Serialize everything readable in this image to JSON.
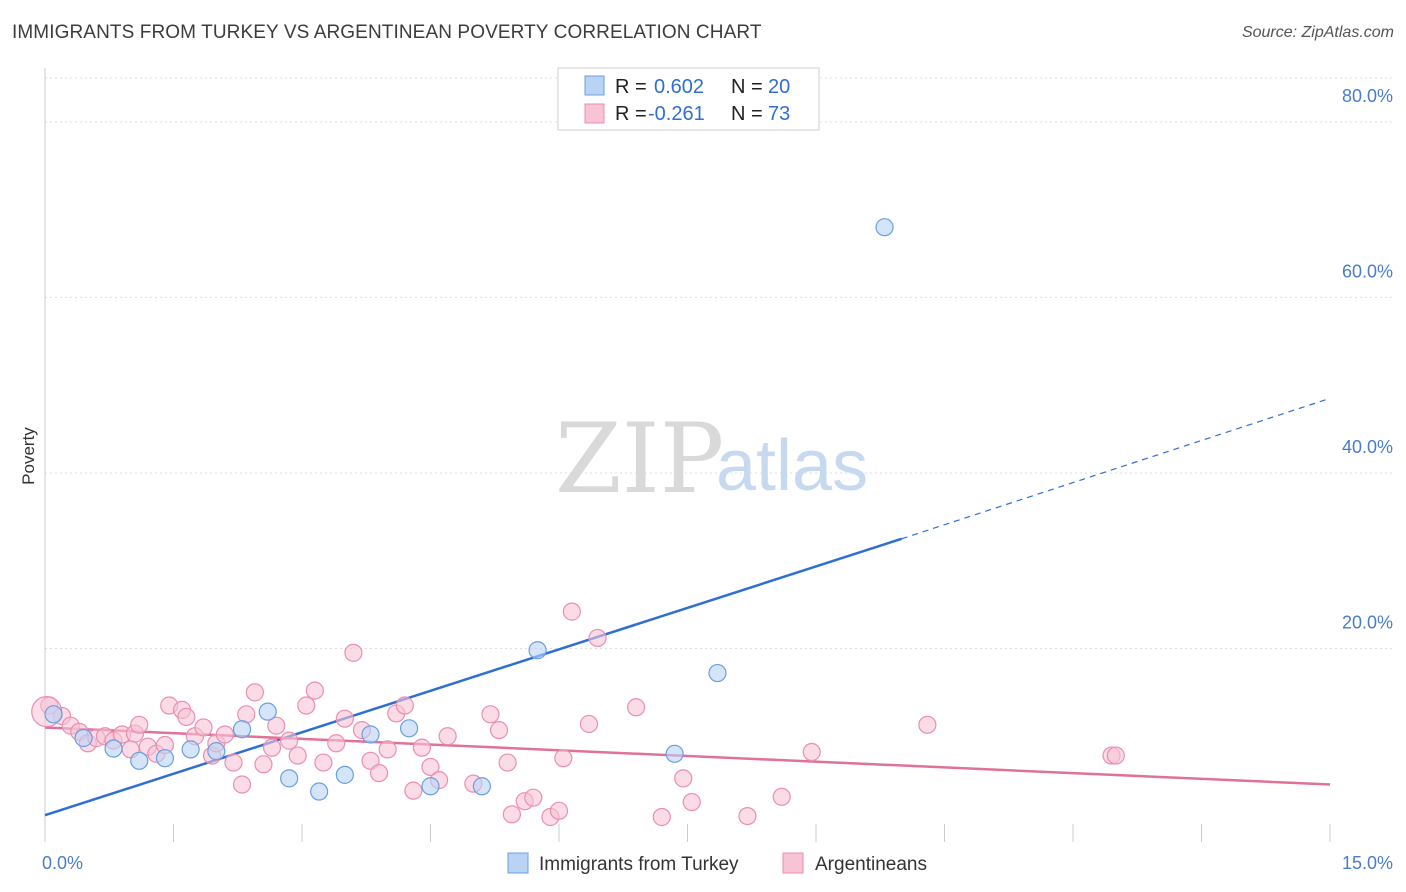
{
  "title": "IMMIGRANTS FROM TURKEY VS ARGENTINEAN POVERTY CORRELATION CHART",
  "source": "Source: ZipAtlas.com",
  "watermark": {
    "zip": "ZIP",
    "atlas": "atlas"
  },
  "colors": {
    "blue_fill": "#b9d3f5",
    "blue_stroke": "#6a9fe0",
    "blue_line": "#2f6fd1",
    "pink_fill": "#f7c3d5",
    "pink_stroke": "#ea8fb1",
    "pink_line": "#e0719b",
    "grid": "#dddddd",
    "tick_text": "#4a7cc9"
  },
  "legend": {
    "rows": [
      {
        "series": "blue",
        "r_label": "R =",
        "r_value": "0.602",
        "n_label": "N =",
        "n_value": "20"
      },
      {
        "series": "pink",
        "r_label": "R =",
        "r_value": "-0.261",
        "n_label": "N =",
        "n_value": "73"
      }
    ]
  },
  "chart_data": {
    "type": "scatter",
    "title": "IMMIGRANTS FROM TURKEY VS ARGENTINEAN POVERTY CORRELATION CHART",
    "xlabel": "",
    "ylabel": "Poverty",
    "xlim": [
      0,
      15
    ],
    "ylim": [
      0,
      85
    ],
    "x_tick_labels": [
      {
        "value": 0,
        "label": "0.0%"
      },
      {
        "value": 15,
        "label": "15.0%"
      }
    ],
    "x_minor_ticks": [
      0,
      1.5,
      3,
      4.5,
      6,
      7.5,
      9,
      10.5,
      12,
      13.5,
      15
    ],
    "y_ticks": [
      {
        "value": 20,
        "label": "20.0%"
      },
      {
        "value": 40,
        "label": "40.0%"
      },
      {
        "value": 60,
        "label": "60.0%"
      },
      {
        "value": 80,
        "label": "80.0%"
      }
    ],
    "grid": true,
    "legend_position": "top-center",
    "series": [
      {
        "name": "Immigrants from Turkey",
        "color_key": "blue",
        "points": [
          [
            0.1,
            12.5
          ],
          [
            0.45,
            9.8
          ],
          [
            0.8,
            8.6
          ],
          [
            1.1,
            7.2
          ],
          [
            1.4,
            7.5
          ],
          [
            1.7,
            8.5
          ],
          [
            2.0,
            8.3
          ],
          [
            2.3,
            10.8
          ],
          [
            2.6,
            12.8
          ],
          [
            2.85,
            5.2
          ],
          [
            3.2,
            3.7
          ],
          [
            3.5,
            5.6
          ],
          [
            3.8,
            10.2
          ],
          [
            4.25,
            10.9
          ],
          [
            4.5,
            4.3
          ],
          [
            5.1,
            4.3
          ],
          [
            5.75,
            19.8
          ],
          [
            7.35,
            8.0
          ],
          [
            7.85,
            17.2
          ],
          [
            9.8,
            68.0
          ]
        ],
        "trend": {
          "x0": 0,
          "y0": 1.0,
          "x1": 10.0,
          "y1": 32.5,
          "dashed_x1": 15.0,
          "dashed_y1": 48.5
        }
      },
      {
        "name": "Argentineans",
        "color_key": "pink",
        "points": [
          [
            0.05,
            13.5
          ],
          [
            0.2,
            12.3
          ],
          [
            0.3,
            11.2
          ],
          [
            0.4,
            10.5
          ],
          [
            0.5,
            9.2
          ],
          [
            0.6,
            9.8
          ],
          [
            0.7,
            10.0
          ],
          [
            0.8,
            9.5
          ],
          [
            0.9,
            10.2
          ],
          [
            1.0,
            8.5
          ],
          [
            1.05,
            10.3
          ],
          [
            1.1,
            11.3
          ],
          [
            1.2,
            8.8
          ],
          [
            1.3,
            8.0
          ],
          [
            1.4,
            9.0
          ],
          [
            1.45,
            13.5
          ],
          [
            1.6,
            13.0
          ],
          [
            1.65,
            12.2
          ],
          [
            1.75,
            10.0
          ],
          [
            1.85,
            11.0
          ],
          [
            1.95,
            7.8
          ],
          [
            2.0,
            9.2
          ],
          [
            2.1,
            10.2
          ],
          [
            2.2,
            7.0
          ],
          [
            2.3,
            4.5
          ],
          [
            2.35,
            12.5
          ],
          [
            2.45,
            15.0
          ],
          [
            2.55,
            6.8
          ],
          [
            2.65,
            8.7
          ],
          [
            2.7,
            11.2
          ],
          [
            2.85,
            9.5
          ],
          [
            2.95,
            7.8
          ],
          [
            3.05,
            13.5
          ],
          [
            3.15,
            15.2
          ],
          [
            3.25,
            7.0
          ],
          [
            3.4,
            9.2
          ],
          [
            3.5,
            12.0
          ],
          [
            3.6,
            19.5
          ],
          [
            3.7,
            10.7
          ],
          [
            3.8,
            7.2
          ],
          [
            3.9,
            5.8
          ],
          [
            4.0,
            8.5
          ],
          [
            4.1,
            12.6
          ],
          [
            4.2,
            13.5
          ],
          [
            4.3,
            3.8
          ],
          [
            4.4,
            8.7
          ],
          [
            4.5,
            6.5
          ],
          [
            4.6,
            5.0
          ],
          [
            4.7,
            10.0
          ],
          [
            5.0,
            4.6
          ],
          [
            5.2,
            12.5
          ],
          [
            5.3,
            10.7
          ],
          [
            5.4,
            7.0
          ],
          [
            5.45,
            1.1
          ],
          [
            5.6,
            2.6
          ],
          [
            5.7,
            3.0
          ],
          [
            5.9,
            0.8
          ],
          [
            6.0,
            1.5
          ],
          [
            6.05,
            7.5
          ],
          [
            6.15,
            24.2
          ],
          [
            6.35,
            11.4
          ],
          [
            6.45,
            21.2
          ],
          [
            6.9,
            13.3
          ],
          [
            7.2,
            0.8
          ],
          [
            7.45,
            5.2
          ],
          [
            7.55,
            2.5
          ],
          [
            8.2,
            0.9
          ],
          [
            8.6,
            3.1
          ],
          [
            8.95,
            8.2
          ],
          [
            10.3,
            11.3
          ],
          [
            12.45,
            7.8
          ],
          [
            12.5,
            7.8
          ],
          [
            0.02,
            12.8
          ]
        ],
        "trend": {
          "x0": 0,
          "y0": 11.0,
          "x1": 15.0,
          "y1": 4.5
        }
      }
    ]
  },
  "bottom_legend": [
    {
      "label": "Immigrants from Turkey",
      "color_key": "blue"
    },
    {
      "label": "Argentineans",
      "color_key": "pink"
    }
  ]
}
